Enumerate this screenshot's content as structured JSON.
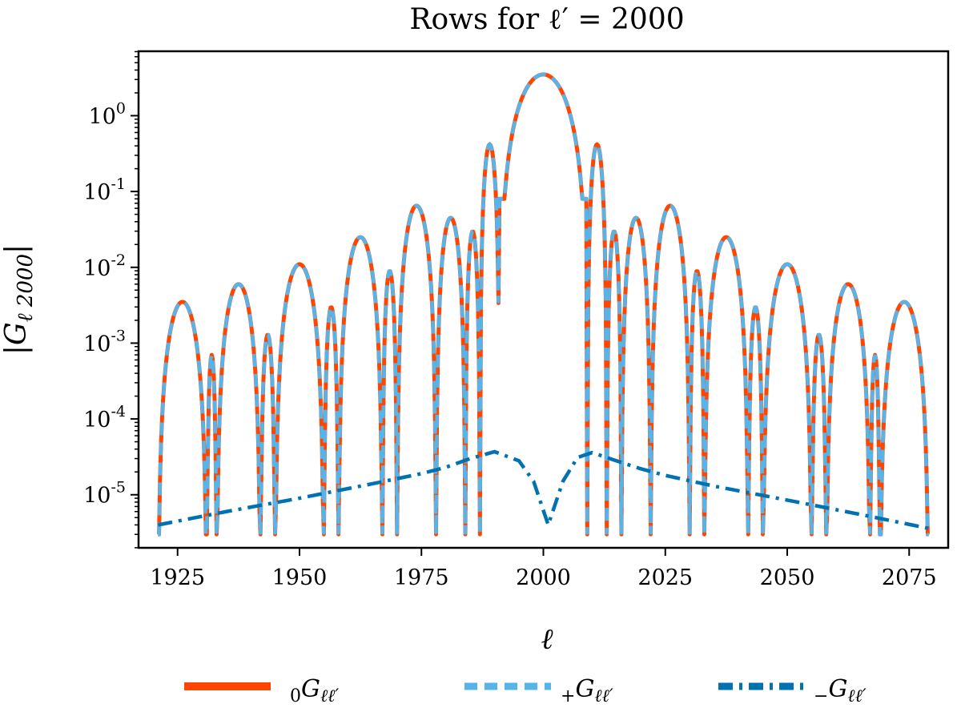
{
  "chart_data": {
    "type": "line",
    "title": "Rows for ℓ′ = 2000",
    "xlabel": "ℓ",
    "ylabel": "|G_{ℓ 2000}|",
    "y_scale": "log",
    "xlim": [
      1917,
      2083
    ],
    "ylim_exp": [
      -5.7,
      0.85
    ],
    "x_ticks": [
      1925,
      1950,
      1975,
      2000,
      2025,
      2050,
      2075
    ],
    "x_tick_labels": [
      "1925",
      "1950",
      "1975",
      "2000",
      "2025",
      "2050",
      "2075"
    ],
    "y_tick_exps": [
      0,
      -1,
      -2,
      -3,
      -4,
      -5
    ],
    "y_tick_labels": [
      "10^0",
      "10^-1",
      "10^-2",
      "10^-3",
      "10^-4",
      "10^-5"
    ],
    "center": 2000,
    "x_range": [
      1921,
      2079
    ],
    "main_lobe": {
      "peak": 3.5,
      "half_width": 9
    },
    "side_lobes_right": [
      {
        "from": 2009,
        "to": 2013,
        "peak": 0.42
      },
      {
        "from": 2013,
        "to": 2016,
        "peak": 0.03
      },
      {
        "from": 2016,
        "to": 2022,
        "peak": 0.045
      },
      {
        "from": 2022,
        "to": 2030,
        "peak": 0.065
      },
      {
        "from": 2030,
        "to": 2033,
        "peak": 0.009
      },
      {
        "from": 2033,
        "to": 2042,
        "peak": 0.025
      },
      {
        "from": 2042,
        "to": 2045,
        "peak": 0.003
      },
      {
        "from": 2045,
        "to": 2055,
        "peak": 0.011
      },
      {
        "from": 2055,
        "to": 2058,
        "peak": 0.0013
      },
      {
        "from": 2058,
        "to": 2067,
        "peak": 0.006
      },
      {
        "from": 2067,
        "to": 2069,
        "peak": 0.0007
      },
      {
        "from": 2069,
        "to": 2079,
        "peak": 0.0035
      }
    ],
    "minus_curve": [
      [
        1921,
        4e-06
      ],
      [
        1935,
        6e-06
      ],
      [
        1950,
        9e-06
      ],
      [
        1965,
        1.4e-05
      ],
      [
        1975,
        1.9e-05
      ],
      [
        1980,
        2.3e-05
      ],
      [
        1985,
        3e-05
      ],
      [
        1990,
        3.7e-05
      ],
      [
        1995,
        2.8e-05
      ],
      [
        1998,
        1.5e-05
      ],
      [
        2001,
        4e-06
      ],
      [
        2004,
        1.5e-05
      ],
      [
        2007,
        3.1e-05
      ],
      [
        2010,
        3.6e-05
      ],
      [
        2015,
        2.8e-05
      ],
      [
        2020,
        2.2e-05
      ],
      [
        2025,
        1.8e-05
      ],
      [
        2035,
        1.3e-05
      ],
      [
        2050,
        8.5e-06
      ],
      [
        2065,
        5.5e-06
      ],
      [
        2079,
        3.6e-06
      ]
    ],
    "series": [
      {
        "name": "0Gℓℓ′",
        "sub_pre": "0",
        "main": "G",
        "sub_post": "ℓℓ′",
        "color": "#ff4500",
        "style": "solid"
      },
      {
        "name": "+Gℓℓ′",
        "sub_pre": "+",
        "main": "G",
        "sub_post": "ℓℓ′",
        "color": "#56b4e9",
        "style": "dashed"
      },
      {
        "name": "−Gℓℓ′",
        "sub_pre": "−",
        "main": "G",
        "sub_post": "ℓℓ′",
        "color": "#0072b2",
        "style": "dashdot"
      }
    ]
  }
}
